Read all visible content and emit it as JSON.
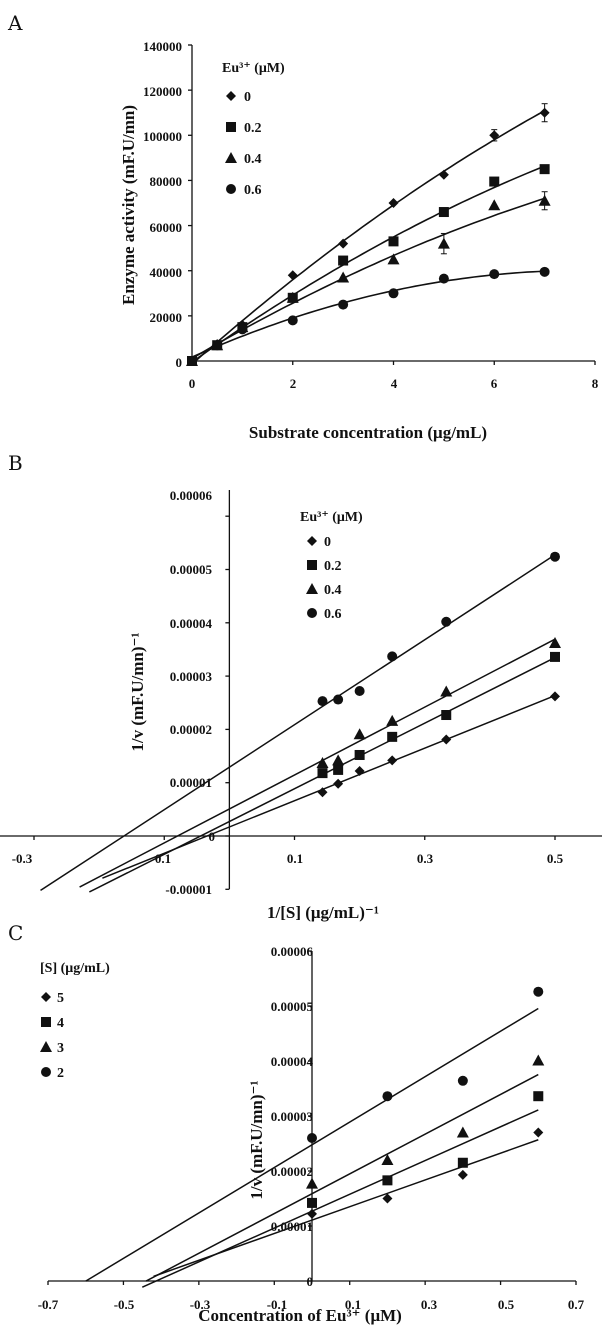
{
  "chart_data": [
    {
      "panel": "A",
      "type": "line",
      "xlabel": "Substrate concentration (μg/mL)",
      "ylabel": "Enzyme activity (mF.U/mn)",
      "xlim": [
        0,
        8
      ],
      "ylim": [
        0,
        140000
      ],
      "xticks": [
        "0",
        "2",
        "4",
        "6",
        "8"
      ],
      "yticks": [
        "0",
        "20000",
        "40000",
        "60000",
        "80000",
        "100000",
        "120000",
        "140000"
      ],
      "legend": {
        "title": "Eu³⁺ (μM)",
        "position": "top-left"
      },
      "fit": "smooth",
      "series": [
        {
          "name": "0",
          "marker": "diamond",
          "x": [
            0,
            0.5,
            1,
            2,
            3,
            4,
            5,
            6,
            7
          ],
          "y": [
            0,
            7500,
            16000,
            38000,
            52000,
            70000,
            82500,
            100000,
            110000
          ],
          "err": [
            0,
            0,
            0,
            0,
            0,
            0,
            0,
            2500,
            4000
          ]
        },
        {
          "name": "0.2",
          "marker": "square",
          "x": [
            0,
            0.5,
            1,
            2,
            3,
            4,
            5,
            6,
            7
          ],
          "y": [
            0,
            7000,
            15000,
            28000,
            44500,
            53000,
            66000,
            79500,
            85000
          ],
          "err": [
            0,
            0,
            0,
            0,
            0,
            0,
            0,
            0,
            0
          ]
        },
        {
          "name": "0.4",
          "marker": "triangle",
          "x": [
            0,
            0.5,
            1,
            2,
            3,
            4,
            5,
            6,
            7
          ],
          "y": [
            0,
            7000,
            15000,
            28000,
            37000,
            45000,
            52000,
            69000,
            71000
          ],
          "err": [
            0,
            0,
            0,
            0,
            0,
            0,
            4500,
            0,
            4000
          ]
        },
        {
          "name": "0.6",
          "marker": "circle",
          "x": [
            0,
            0.5,
            1,
            2,
            3,
            4,
            5,
            6,
            7
          ],
          "y": [
            0,
            7000,
            14000,
            18000,
            25000,
            30000,
            36500,
            38500,
            39500
          ],
          "err": [
            0,
            0,
            0,
            0,
            0,
            0,
            0,
            0,
            0
          ]
        }
      ]
    },
    {
      "panel": "B",
      "type": "scatter",
      "xlabel": "1/[S] (μg/mL)⁻¹",
      "ylabel": "1/v (mF.U/mn)⁻¹",
      "xlim": [
        -0.3,
        0.56
      ],
      "ylim": [
        -1e-05,
        6e-05
      ],
      "xticks": [
        "-0.3",
        "0.1",
        "0.1",
        "0.3",
        "0.5"
      ],
      "yticks": [
        "-0.00001",
        "0",
        "0.00001",
        "0.00002",
        "0.00003",
        "0.00004",
        "0.00005",
        "0.00006"
      ],
      "legend": {
        "title": "Eu³⁺ (μM)",
        "position": "top-right"
      },
      "fit": "linear",
      "series": [
        {
          "name": "0",
          "marker": "diamond",
          "x": [
            0.143,
            0.167,
            0.2,
            0.25,
            0.333,
            0.5
          ],
          "y": [
            8.2e-06,
            9.8e-06,
            1.22e-05,
            1.42e-05,
            1.81e-05,
            2.62e-05
          ]
        },
        {
          "name": "0.2",
          "marker": "square",
          "x": [
            0.143,
            0.167,
            0.2,
            0.25,
            0.333,
            0.5
          ],
          "y": [
            1.18e-05,
            1.24e-05,
            1.52e-05,
            1.86e-05,
            2.27e-05,
            3.36e-05
          ]
        },
        {
          "name": "0.4",
          "marker": "triangle",
          "x": [
            0.143,
            0.167,
            0.2,
            0.25,
            0.333,
            0.5
          ],
          "y": [
            1.37e-05,
            1.42e-05,
            1.91e-05,
            2.16e-05,
            2.71e-05,
            3.62e-05
          ]
        },
        {
          "name": "0.6",
          "marker": "circle",
          "x": [
            0.143,
            0.167,
            0.2,
            0.25,
            0.333,
            0.5
          ],
          "y": [
            2.53e-05,
            2.56e-05,
            2.72e-05,
            3.37e-05,
            4.02e-05,
            5.24e-05
          ]
        }
      ]
    },
    {
      "panel": "C",
      "type": "scatter",
      "xlabel": "Concentration of Eu³⁺ (μM)",
      "ylabel": "1/v (mF.U/mn)⁻¹",
      "xlim": [
        -0.7,
        0.7
      ],
      "ylim": [
        0,
        6e-05
      ],
      "xticks": [
        "-0.7",
        "-0.5",
        "-0.3",
        "-0.1",
        "0.1",
        "0.3",
        "0.5",
        "0.7"
      ],
      "yticks": [
        "0",
        "0.00001",
        "0.00002",
        "0.00003",
        "0.00004",
        "0.00005",
        "0.00006"
      ],
      "legend": {
        "title": "[S] (μg/mL)",
        "position": "top-left"
      },
      "fit": "linear",
      "series": [
        {
          "name": "5",
          "marker": "diamond",
          "x": [
            0,
            0.2,
            0.4,
            0.6
          ],
          "y": [
            1.22e-05,
            1.5e-05,
            1.93e-05,
            2.7e-05
          ]
        },
        {
          "name": "4",
          "marker": "square",
          "x": [
            0,
            0.2,
            0.4,
            0.6
          ],
          "y": [
            1.42e-05,
            1.83e-05,
            2.15e-05,
            3.36e-05
          ]
        },
        {
          "name": "3",
          "marker": "triangle",
          "x": [
            0,
            0.2,
            0.4,
            0.6
          ],
          "y": [
            1.77e-05,
            2.2e-05,
            2.7e-05,
            4.01e-05
          ]
        },
        {
          "name": "2",
          "marker": "circle",
          "x": [
            0,
            0.2,
            0.4,
            0.6
          ],
          "y": [
            2.6e-05,
            3.36e-05,
            3.64e-05,
            5.26e-05
          ]
        }
      ]
    }
  ]
}
